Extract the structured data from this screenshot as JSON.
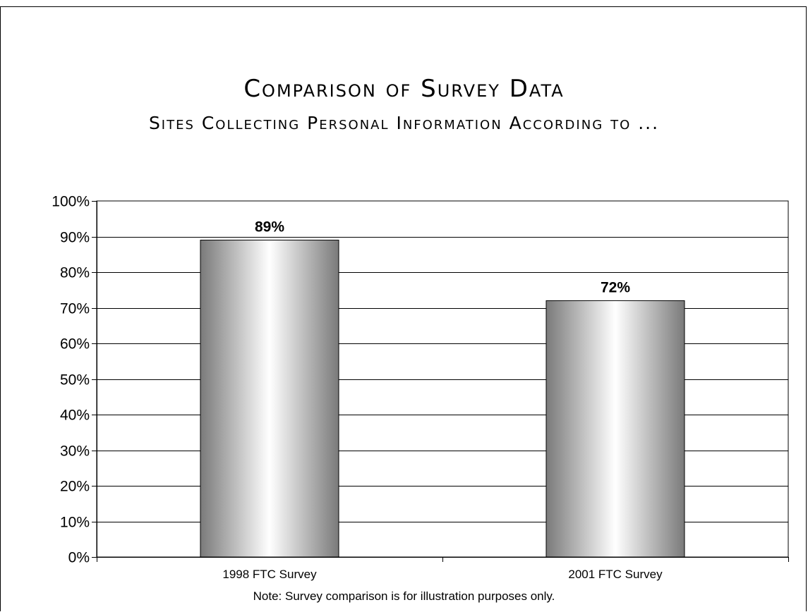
{
  "chart_data": {
    "type": "bar",
    "title": "Comparison of Survey Data",
    "subtitle": "Sites Collecting Personal Information According to ...",
    "categories": [
      "1998 FTC Survey",
      "2001 FTC Survey"
    ],
    "values": [
      89,
      72
    ],
    "value_labels": [
      "89%",
      "72%"
    ],
    "ylim": [
      0,
      100
    ],
    "yticks": [
      "0%",
      "10%",
      "20%",
      "30%",
      "40%",
      "50%",
      "60%",
      "70%",
      "80%",
      "90%",
      "100%"
    ],
    "grid": true,
    "note": "Note: Survey comparison is for illustration purposes only.",
    "bar_color_edge": "#7a7a7a",
    "bar_color_center": "#ffffff"
  }
}
